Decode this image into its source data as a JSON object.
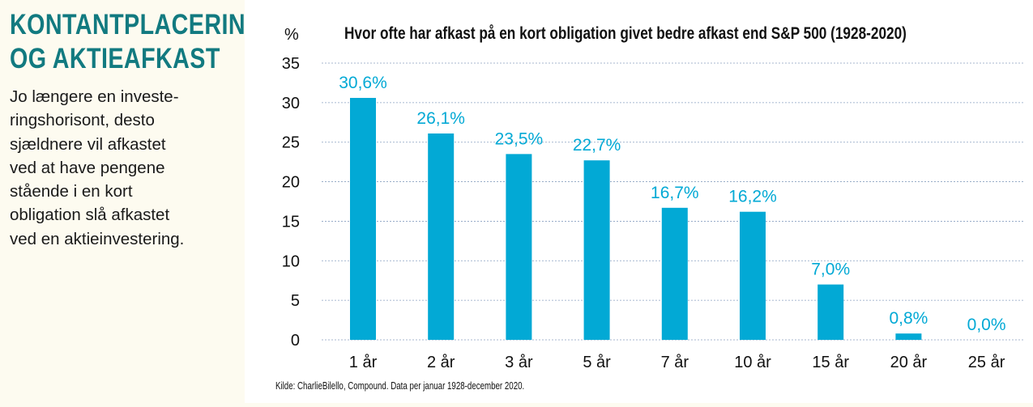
{
  "sidebar": {
    "headline": [
      "KONTANTPLACERING",
      "OG AKTIEAFKAST"
    ],
    "body": [
      "Jo længere en investe-",
      "ringshorisont, desto",
      "sjældnere vil afkastet",
      "ved at have pengene",
      "stående i en kort",
      "obligation slå afkastet",
      "ved en aktieinvestering."
    ]
  },
  "colors": {
    "bar": "#02a9d5",
    "label": "#02a9d5",
    "headline": "#127a80",
    "grid": "#8aa0c0"
  },
  "chart_data": {
    "type": "bar",
    "title": "Hvor ofte har afkast på en kort obligation givet bedre afkast end S&P 500 (1928-2020)",
    "ylabel": "%",
    "xlabel": "",
    "categories": [
      "1 år",
      "2 år",
      "3 år",
      "5 år",
      "7 år",
      "10 år",
      "15 år",
      "20 år",
      "25 år"
    ],
    "values": [
      30.6,
      26.1,
      23.5,
      22.7,
      16.7,
      16.2,
      7.0,
      0.8,
      0.0
    ],
    "value_labels": [
      "30,6%",
      "26,1%",
      "23,5%",
      "22,7%",
      "16,7%",
      "16,2%",
      "7,0%",
      "0,8%",
      "0,0%"
    ],
    "yticks": [
      0,
      5,
      10,
      15,
      20,
      25,
      30,
      35
    ],
    "ylim": [
      0,
      35
    ],
    "grid": true,
    "source": "Kilde: CharlieBilello, Compound. Data per januar 1928-december 2020."
  }
}
